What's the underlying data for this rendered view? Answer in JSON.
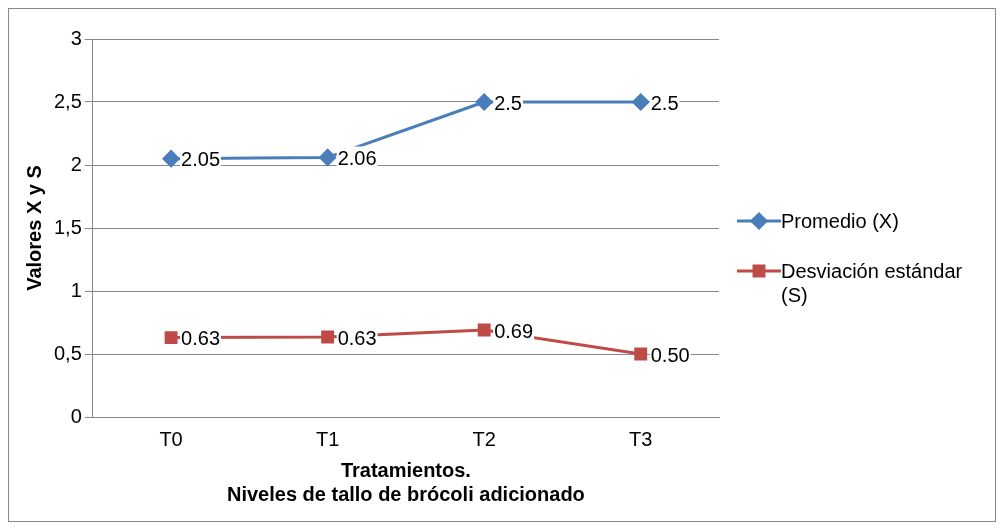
{
  "chart_data": {
    "type": "line",
    "xlabel": "Tratamientos.\nNiveles de tallo de brócoli adicionado",
    "ylabel": "Valores X y S",
    "categories": [
      "T0",
      "T1",
      "T2",
      "T3"
    ],
    "series": [
      {
        "name": "Promedio (X)",
        "color": "#4a7ebb",
        "marker": "diamond",
        "values": [
          2.05,
          2.06,
          2.5,
          2.5
        ],
        "value_labels": [
          "2.05",
          "2.06",
          "2.5",
          "2.5"
        ]
      },
      {
        "name": "Desviación estándar (S)",
        "color": "#be4b48",
        "marker": "square",
        "values": [
          0.63,
          0.635,
          0.69,
          0.5
        ],
        "value_labels": [
          "0.63",
          "0.63",
          "0.69",
          "0.50"
        ]
      }
    ],
    "ylim": [
      0,
      3
    ],
    "yticks": [
      0,
      {
        "value": 0.5,
        "label": "0,5"
      },
      1,
      {
        "value": 1.5,
        "label": "1,5"
      },
      2,
      {
        "value": 2.5,
        "label": "2,5"
      },
      3
    ],
    "grid": "y",
    "legend": "right"
  }
}
